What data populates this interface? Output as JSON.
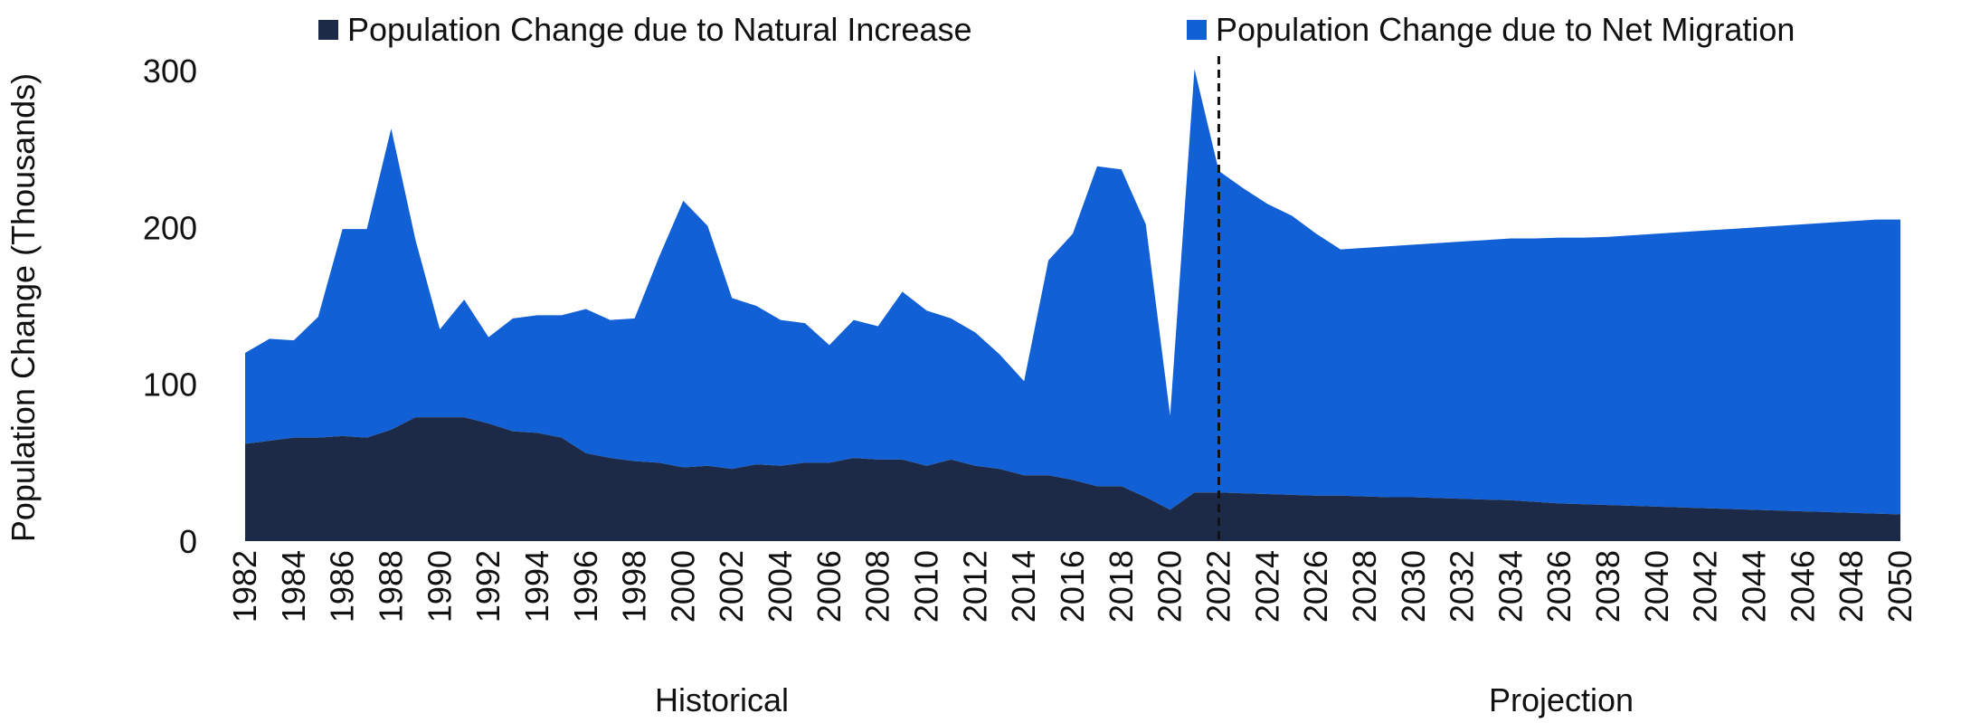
{
  "colors": {
    "natural": "#1c2a47",
    "migration": "#1160d6",
    "text": "#111111",
    "divider": "#111111"
  },
  "chart_data": {
    "type": "area",
    "stacked": true,
    "ylabel": "Population Change (Thousands)",
    "ylim": [
      0,
      300
    ],
    "yticks": [
      0,
      100,
      200,
      300
    ],
    "xlim": [
      1982,
      2050
    ],
    "xticks": [
      1982,
      1984,
      1986,
      1988,
      1990,
      1992,
      1994,
      1996,
      1998,
      2000,
      2002,
      2004,
      2006,
      2008,
      2010,
      2012,
      2014,
      2016,
      2018,
      2020,
      2022,
      2024,
      2026,
      2028,
      2030,
      2032,
      2034,
      2036,
      2038,
      2040,
      2042,
      2044,
      2046,
      2048,
      2050
    ],
    "grid": false,
    "legend_position": "top",
    "divider_year": 2022.0,
    "section_labels": [
      "Historical",
      "Projection"
    ],
    "x": [
      1982,
      1983,
      1984,
      1985,
      1986,
      1987,
      1988,
      1989,
      1990,
      1991,
      1992,
      1993,
      1994,
      1995,
      1996,
      1997,
      1998,
      1999,
      2000,
      2001,
      2002,
      2003,
      2004,
      2005,
      2006,
      2007,
      2008,
      2009,
      2010,
      2011,
      2012,
      2013,
      2014,
      2015,
      2016,
      2017,
      2018,
      2019,
      2020,
      2021,
      2022,
      2023,
      2024,
      2025,
      2026,
      2027,
      2028,
      2029,
      2030,
      2031,
      2032,
      2033,
      2034,
      2035,
      2036,
      2037,
      2038,
      2039,
      2040,
      2041,
      2042,
      2043,
      2044,
      2045,
      2046,
      2047,
      2048,
      2049,
      2050
    ],
    "series": [
      {
        "name": "Population Change due to Natural Increase",
        "values": [
          62,
          64,
          66,
          66,
          67,
          66,
          71,
          79,
          79,
          79,
          75,
          70,
          69,
          66,
          56,
          53,
          51,
          50,
          47,
          48,
          46,
          49,
          48,
          50,
          50,
          53,
          52,
          52,
          48,
          52,
          48,
          46,
          42,
          42,
          39,
          35,
          35,
          28,
          20,
          31,
          31,
          30.5,
          30,
          29.5,
          29,
          29,
          28.5,
          28,
          28,
          27.5,
          27,
          26.5,
          26,
          25,
          24,
          23.5,
          23,
          22.5,
          22,
          21.5,
          21,
          20.5,
          20,
          19.5,
          19,
          18.5,
          18,
          17.5,
          17
        ]
      },
      {
        "name": "Population Change due to Net Migration",
        "values": [
          58,
          65,
          62,
          77,
          132,
          133,
          192,
          113,
          56,
          75,
          55,
          72,
          75,
          78,
          92,
          88,
          91,
          131,
          170,
          153,
          109,
          101,
          93,
          89,
          75,
          88,
          85,
          107,
          99,
          90,
          85,
          73,
          60,
          137,
          157,
          204,
          202,
          174,
          60,
          270,
          205,
          194.5,
          185,
          178,
          167,
          157,
          158.5,
          160,
          161,
          162.5,
          164,
          165.5,
          167,
          168,
          169.5,
          170,
          171,
          172.5,
          174,
          175.5,
          177,
          178.5,
          180,
          181.5,
          183,
          184.5,
          186,
          187.5,
          188
        ]
      }
    ]
  }
}
